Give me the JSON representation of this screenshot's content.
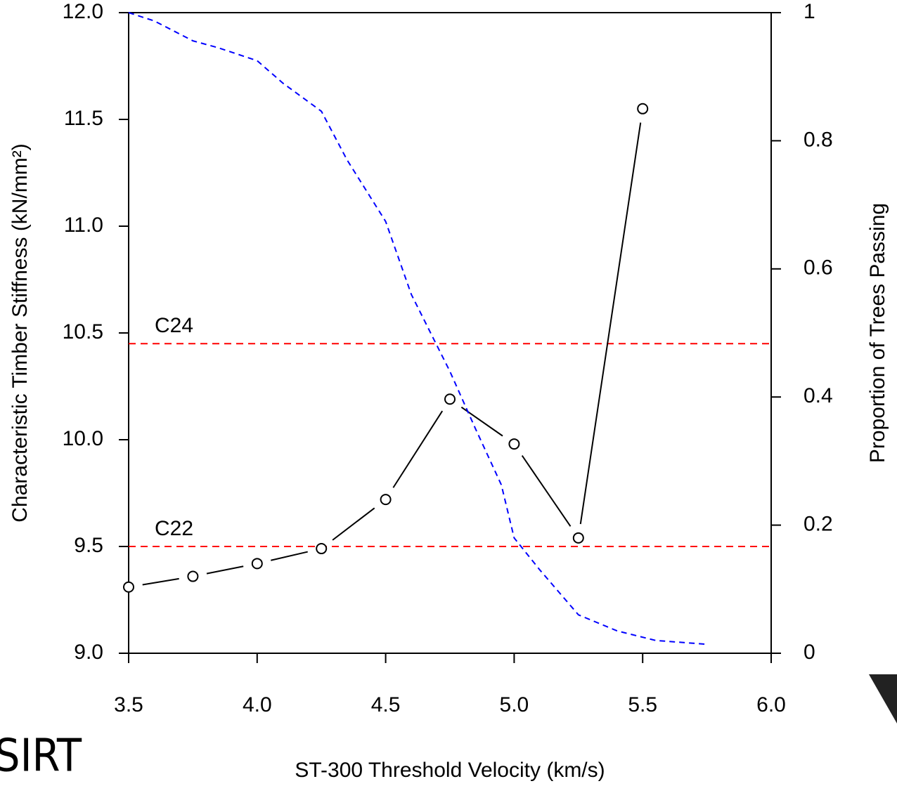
{
  "chart_data": {
    "type": "line",
    "xlabel": "ST-300 Threshold Velocity (km/s)",
    "ylabel": "Characteristic Timber Stiffness (kN/mm²)",
    "y2label": "Proportion of Trees Passing",
    "xlim": [
      3.5,
      6.0
    ],
    "xticks": [
      3.5,
      {
        "value": 4.0,
        "label": "4.0"
      },
      4.5,
      {
        "value": 5.0,
        "label": "5.0"
      },
      5.5,
      {
        "value": 6.0,
        "label": "6.0"
      }
    ],
    "ylim": [
      9.0,
      12.0
    ],
    "yticks": [
      {
        "value": 9.0,
        "label": "9.0"
      },
      9.5,
      {
        "value": 10.0,
        "label": "10.0"
      },
      10.5,
      {
        "value": 11.0,
        "label": "11.0"
      },
      11.5,
      {
        "value": 12.0,
        "label": "12.0"
      }
    ],
    "y2lim": [
      0,
      1
    ],
    "y2ticks": [
      0,
      0.2,
      0.4,
      0.6,
      0.8,
      1
    ],
    "series": [
      {
        "color": "#000000",
        "style": "points-lines",
        "axis": "y",
        "x": [
          3.5,
          3.75,
          4.0,
          4.25,
          4.5,
          4.75,
          5.0,
          5.25,
          5.5
        ],
        "values": [
          9.31,
          9.36,
          9.42,
          9.49,
          9.72,
          10.19,
          9.98,
          9.54,
          11.55
        ]
      },
      {
        "color": "#0000ff",
        "style": "dashed",
        "axis": "y2",
        "x": [
          3.5,
          3.6,
          3.75,
          3.85,
          4.0,
          4.1,
          4.25,
          4.35,
          4.5,
          4.6,
          4.75,
          4.85,
          4.95,
          5.0,
          5.1,
          5.25,
          5.4,
          5.55,
          5.75
        ],
        "values": [
          1.0,
          0.987,
          0.956,
          0.945,
          0.925,
          0.89,
          0.846,
          0.77,
          0.674,
          0.56,
          0.44,
          0.35,
          0.263,
          0.18,
          0.13,
          0.06,
          0.035,
          0.02,
          0.014
        ]
      }
    ],
    "hlines": [
      {
        "value": 10.45,
        "label": "C24",
        "color": "#ff0000"
      },
      {
        "value": 9.5,
        "label": "C22",
        "color": "#ff0000"
      }
    ],
    "logo_text": "SIRT"
  }
}
